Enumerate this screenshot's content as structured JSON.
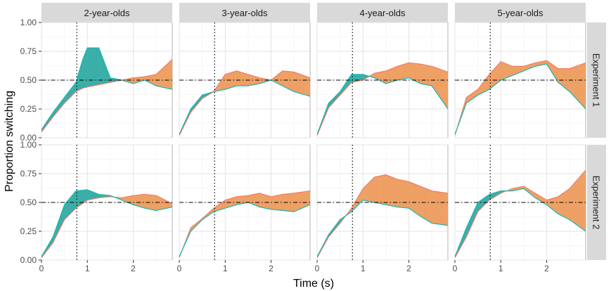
{
  "chart_data": {
    "type": "area",
    "xlabel": "Time (s)",
    "ylabel": "Proportion switching",
    "xlim": [
      0,
      2.85
    ],
    "ylim": [
      0,
      1
    ],
    "x_ticks": [
      "0",
      "1",
      "2"
    ],
    "x_tick_values": [
      0,
      1,
      2
    ],
    "y_ticks": [
      "0.00",
      "0.25",
      "0.50",
      "0.75",
      "1.00"
    ],
    "y_tick_values": [
      0,
      0.25,
      0.5,
      0.75,
      1
    ],
    "column_facets": [
      "2-year-olds",
      "3-year-olds",
      "4-year-olds",
      "5-year-olds"
    ],
    "row_facets": [
      "Experiment 1",
      "Experiment 2"
    ],
    "reference_lines": {
      "horizontal_y": 0.5,
      "vertical_x": 0.77
    },
    "colors": {
      "series_a": "#1ab5b0",
      "series_b": "#f07f6a",
      "fill_a_higher": "#3aaea8",
      "fill_b_higher": "#eea064"
    },
    "grid": true,
    "legend": "none",
    "panels": [
      {
        "column": "2-year-olds",
        "row": "Experiment 1",
        "x": [
          0,
          0.25,
          0.5,
          0.75,
          0.9,
          1.0,
          1.25,
          1.5,
          1.75,
          2.0,
          2.25,
          2.5,
          2.85
        ],
        "series_a": [
          0.07,
          0.22,
          0.35,
          0.48,
          0.68,
          0.78,
          0.78,
          0.52,
          0.5,
          0.47,
          0.5,
          0.45,
          0.42
        ],
        "series_b": [
          0.05,
          0.18,
          0.3,
          0.4,
          0.43,
          0.44,
          0.46,
          0.48,
          0.5,
          0.52,
          0.53,
          0.55,
          0.68
        ]
      },
      {
        "column": "3-year-olds",
        "row": "Experiment 1",
        "x": [
          0,
          0.25,
          0.5,
          0.75,
          1.0,
          1.25,
          1.5,
          1.75,
          2.0,
          2.25,
          2.5,
          2.85
        ],
        "series_a": [
          0.03,
          0.25,
          0.37,
          0.4,
          0.42,
          0.45,
          0.45,
          0.47,
          0.5,
          0.45,
          0.4,
          0.36
        ],
        "series_b": [
          0.02,
          0.22,
          0.34,
          0.4,
          0.55,
          0.58,
          0.55,
          0.52,
          0.5,
          0.58,
          0.57,
          0.52
        ]
      },
      {
        "column": "4-year-olds",
        "row": "Experiment 1",
        "x": [
          0,
          0.25,
          0.5,
          0.75,
          1.0,
          1.25,
          1.5,
          1.75,
          2.0,
          2.25,
          2.5,
          2.85
        ],
        "series_a": [
          0.03,
          0.3,
          0.4,
          0.55,
          0.55,
          0.52,
          0.47,
          0.5,
          0.52,
          0.47,
          0.45,
          0.25
        ],
        "series_b": [
          0.02,
          0.26,
          0.37,
          0.48,
          0.5,
          0.56,
          0.58,
          0.62,
          0.65,
          0.64,
          0.62,
          0.57
        ]
      },
      {
        "column": "5-year-olds",
        "row": "Experiment 1",
        "x": [
          0,
          0.25,
          0.5,
          0.75,
          1.0,
          1.25,
          1.5,
          1.75,
          2.0,
          2.25,
          2.5,
          2.85
        ],
        "series_a": [
          0.03,
          0.3,
          0.37,
          0.42,
          0.5,
          0.54,
          0.58,
          0.62,
          0.64,
          0.48,
          0.4,
          0.25
        ],
        "series_b": [
          0.02,
          0.35,
          0.42,
          0.55,
          0.66,
          0.62,
          0.62,
          0.65,
          0.67,
          0.6,
          0.6,
          0.65
        ]
      },
      {
        "column": "2-year-olds",
        "row": "Experiment 2",
        "x": [
          0,
          0.25,
          0.5,
          0.75,
          1.0,
          1.25,
          1.5,
          1.75,
          2.0,
          2.25,
          2.5,
          2.85
        ],
        "series_a": [
          0.03,
          0.2,
          0.48,
          0.6,
          0.61,
          0.57,
          0.56,
          0.52,
          0.48,
          0.45,
          0.43,
          0.46
        ],
        "series_b": [
          0.02,
          0.15,
          0.35,
          0.45,
          0.52,
          0.54,
          0.55,
          0.54,
          0.56,
          0.57,
          0.56,
          0.49
        ]
      },
      {
        "column": "3-year-olds",
        "row": "Experiment 2",
        "x": [
          0,
          0.25,
          0.5,
          0.75,
          1.0,
          1.25,
          1.5,
          1.75,
          2.0,
          2.25,
          2.5,
          2.85
        ],
        "series_a": [
          0.03,
          0.25,
          0.35,
          0.42,
          0.45,
          0.48,
          0.5,
          0.46,
          0.44,
          0.43,
          0.42,
          0.48
        ],
        "series_b": [
          0.02,
          0.28,
          0.36,
          0.45,
          0.52,
          0.55,
          0.56,
          0.58,
          0.55,
          0.57,
          0.58,
          0.6
        ]
      },
      {
        "column": "4-year-olds",
        "row": "Experiment 2",
        "x": [
          0,
          0.25,
          0.5,
          0.75,
          1.0,
          1.25,
          1.5,
          1.75,
          2.0,
          2.25,
          2.5,
          2.85
        ],
        "series_a": [
          0.03,
          0.22,
          0.35,
          0.42,
          0.52,
          0.5,
          0.48,
          0.46,
          0.45,
          0.38,
          0.32,
          0.3
        ],
        "series_b": [
          0.02,
          0.2,
          0.32,
          0.45,
          0.62,
          0.72,
          0.74,
          0.7,
          0.68,
          0.64,
          0.6,
          0.58
        ]
      },
      {
        "column": "5-year-olds",
        "row": "Experiment 2",
        "x": [
          0,
          0.25,
          0.5,
          0.75,
          1.0,
          1.25,
          1.5,
          1.75,
          2.0,
          2.25,
          2.5,
          2.85
        ],
        "series_a": [
          0.03,
          0.28,
          0.5,
          0.57,
          0.6,
          0.6,
          0.62,
          0.54,
          0.48,
          0.4,
          0.35,
          0.25
        ],
        "series_b": [
          0.02,
          0.2,
          0.42,
          0.52,
          0.58,
          0.62,
          0.64,
          0.58,
          0.52,
          0.55,
          0.62,
          0.78
        ]
      }
    ]
  }
}
